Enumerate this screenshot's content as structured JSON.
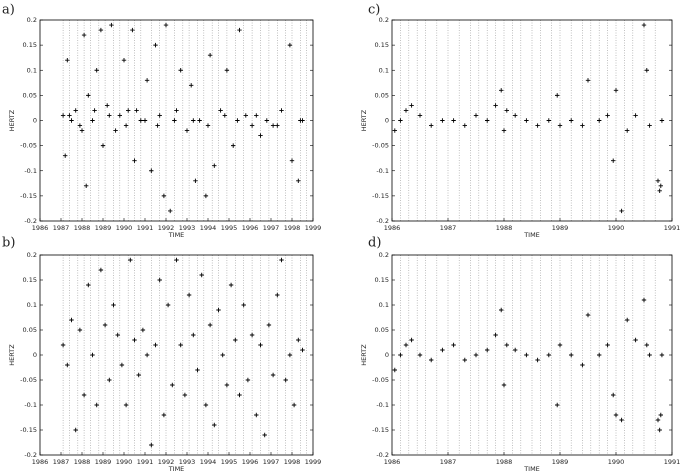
{
  "chart_data": [
    {
      "type": "scatter",
      "label": "a)",
      "xlabel": "TIME",
      "ylabel": "HERTZ",
      "color": "#000000",
      "xlim": [
        1986,
        1999
      ],
      "ylim": [
        -0.2,
        0.2
      ],
      "xticks": [
        1986,
        1987,
        1988,
        1989,
        1990,
        1991,
        1992,
        1993,
        1994,
        1995,
        1996,
        1997,
        1998,
        1999
      ],
      "yticks": [
        -0.2,
        -0.15,
        -0.1,
        -0.05,
        0,
        0.05,
        0.1,
        0.15,
        0.2
      ],
      "vlines": [
        1987.1,
        1987.4,
        1987.8,
        1988.1,
        1988.4,
        1988.8,
        1989.1,
        1989.5,
        1989.8,
        1990.2,
        1990.5,
        1990.8,
        1991.3,
        1991.7,
        1992.0,
        1992.4,
        1992.8,
        1993.1,
        1993.5,
        1993.8,
        1994.2,
        1994.5,
        1994.9,
        1995.3,
        1995.7,
        1996.1,
        1996.5,
        1996.9,
        1997.3,
        1997.7,
        1998.0,
        1998.4,
        1998.7
      ],
      "x": [
        1987.1,
        1987.2,
        1987.3,
        1987.5,
        1987.7,
        1987.9,
        1988.1,
        1988.2,
        1988.3,
        1988.5,
        1988.7,
        1988.9,
        1989.0,
        1989.2,
        1989.4,
        1989.6,
        1989.8,
        1990.0,
        1990.2,
        1990.4,
        1990.5,
        1990.8,
        1991.1,
        1991.3,
        1991.5,
        1991.7,
        1991.9,
        1992.0,
        1992.2,
        1992.4,
        1992.7,
        1993.0,
        1993.2,
        1993.4,
        1993.6,
        1993.9,
        1994.1,
        1994.3,
        1994.6,
        1994.9,
        1995.2,
        1995.5,
        1995.8,
        1996.1,
        1996.5,
        1996.8,
        1997.1,
        1997.5,
        1997.9,
        1998.0,
        1998.3,
        1998.5,
        1987.4,
        1988.0,
        1988.6,
        1989.3,
        1990.1,
        1990.6,
        1991.0,
        1991.6,
        1992.5,
        1993.3,
        1994.0,
        1994.8,
        1995.4,
        1996.3,
        1997.3,
        1998.4
      ],
      "values": [
        0.01,
        -0.07,
        0.12,
        0.0,
        0.02,
        -0.01,
        0.17,
        -0.13,
        0.05,
        0.0,
        0.1,
        0.18,
        -0.05,
        0.03,
        0.19,
        -0.02,
        0.01,
        0.12,
        0.02,
        0.18,
        -0.08,
        0.0,
        0.08,
        -0.1,
        0.15,
        0.01,
        -0.15,
        0.19,
        -0.18,
        0.0,
        0.1,
        -0.02,
        0.07,
        -0.12,
        0.0,
        -0.15,
        0.13,
        -0.09,
        0.02,
        0.1,
        -0.05,
        0.18,
        0.01,
        -0.01,
        -0.03,
        0.0,
        -0.01,
        0.02,
        0.15,
        -0.08,
        -0.12,
        0.0,
        0.01,
        -0.02,
        0.02,
        0.01,
        -0.01,
        0.02,
        0.0,
        -0.01,
        0.02,
        0.0,
        -0.01,
        0.01,
        0.0,
        0.01,
        -0.01,
        0.0
      ]
    },
    {
      "type": "scatter",
      "label": "b)",
      "xlabel": "TIME",
      "ylabel": "HERTZ",
      "color": "#000000",
      "xlim": [
        1986,
        1999
      ],
      "ylim": [
        -0.2,
        0.2
      ],
      "xticks": [
        1986,
        1987,
        1988,
        1989,
        1990,
        1991,
        1992,
        1993,
        1994,
        1995,
        1996,
        1997,
        1998,
        1999
      ],
      "yticks": [
        -0.2,
        -0.15,
        -0.1,
        -0.05,
        0,
        0.05,
        0.1,
        0.15,
        0.2
      ],
      "vlines": [
        1987.1,
        1987.4,
        1987.8,
        1988.1,
        1988.4,
        1988.8,
        1989.1,
        1989.5,
        1989.8,
        1990.2,
        1990.5,
        1990.8,
        1991.3,
        1991.7,
        1992.0,
        1992.4,
        1992.8,
        1993.1,
        1993.5,
        1993.8,
        1994.2,
        1994.5,
        1994.9,
        1995.3,
        1995.7,
        1996.1,
        1996.5,
        1996.9,
        1997.3,
        1997.7,
        1998.0,
        1998.4,
        1998.7
      ],
      "x": [
        1987.1,
        1987.3,
        1987.5,
        1987.7,
        1987.9,
        1988.1,
        1988.3,
        1988.5,
        1988.7,
        1988.9,
        1989.1,
        1989.3,
        1989.5,
        1989.7,
        1989.9,
        1990.1,
        1990.3,
        1990.5,
        1990.7,
        1990.9,
        1991.1,
        1991.3,
        1991.5,
        1991.7,
        1991.9,
        1992.1,
        1992.3,
        1992.5,
        1992.7,
        1992.9,
        1993.1,
        1993.3,
        1993.5,
        1993.7,
        1993.9,
        1994.1,
        1994.3,
        1994.5,
        1994.7,
        1994.9,
        1995.1,
        1995.3,
        1995.5,
        1995.7,
        1995.9,
        1996.1,
        1996.3,
        1996.5,
        1996.7,
        1996.9,
        1997.1,
        1997.3,
        1997.5,
        1997.7,
        1997.9,
        1998.1,
        1998.3,
        1998.5
      ],
      "values": [
        0.02,
        -0.02,
        0.07,
        -0.15,
        0.05,
        -0.08,
        0.14,
        0.0,
        -0.1,
        0.17,
        0.06,
        -0.05,
        0.1,
        0.04,
        -0.02,
        -0.1,
        0.19,
        0.03,
        -0.04,
        0.05,
        0.0,
        -0.18,
        0.02,
        0.15,
        -0.12,
        0.1,
        -0.06,
        0.19,
        0.02,
        -0.08,
        0.12,
        0.04,
        -0.03,
        0.16,
        -0.1,
        0.06,
        -0.14,
        0.09,
        0.0,
        -0.06,
        0.14,
        0.03,
        -0.08,
        0.1,
        -0.05,
        0.04,
        -0.12,
        0.02,
        -0.16,
        0.06,
        -0.04,
        0.12,
        0.19,
        -0.05,
        0.0,
        -0.1,
        0.03,
        0.01
      ]
    },
    {
      "type": "scatter",
      "label": "c)",
      "xlabel": "TIME",
      "ylabel": "HERTZ",
      "color": "#000000",
      "xlim": [
        1986,
        1991
      ],
      "ylim": [
        -0.2,
        0.2
      ],
      "xticks": [
        1986,
        1987,
        1988,
        1989,
        1990,
        1991
      ],
      "yticks": [
        -0.2,
        -0.15,
        -0.1,
        -0.05,
        0,
        0.05,
        0.1,
        0.15,
        0.2
      ],
      "vlines": [
        1986.15,
        1986.3,
        1986.45,
        1986.6,
        1986.8,
        1987.0,
        1987.2,
        1987.4,
        1987.55,
        1987.7,
        1987.85,
        1988.0,
        1988.15,
        1988.3,
        1988.5,
        1988.65,
        1988.85,
        1989.0,
        1989.2,
        1989.4,
        1989.55,
        1989.7,
        1989.85,
        1990.0,
        1990.15,
        1990.3,
        1990.5,
        1990.7
      ],
      "x": [
        1986.05,
        1986.15,
        1986.25,
        1986.35,
        1986.5,
        1986.7,
        1986.9,
        1987.1,
        1987.3,
        1987.5,
        1987.7,
        1987.85,
        1987.95,
        1988.0,
        1988.05,
        1988.2,
        1988.4,
        1988.6,
        1988.8,
        1988.95,
        1989.0,
        1989.2,
        1989.4,
        1989.5,
        1989.7,
        1989.85,
        1989.95,
        1990.0,
        1990.1,
        1990.2,
        1990.35,
        1990.5,
        1990.55,
        1990.6,
        1990.75,
        1990.78,
        1990.8,
        1990.82
      ],
      "values": [
        -0.02,
        0.0,
        0.02,
        0.03,
        0.01,
        -0.01,
        0.0,
        0.0,
        -0.01,
        0.01,
        0.0,
        0.03,
        0.06,
        -0.02,
        0.02,
        0.01,
        0.0,
        -0.01,
        0.0,
        0.05,
        -0.01,
        0.0,
        -0.01,
        0.08,
        0.0,
        0.01,
        -0.08,
        0.06,
        -0.18,
        -0.02,
        0.01,
        0.19,
        0.1,
        -0.01,
        -0.12,
        -0.14,
        -0.13,
        0.0
      ]
    },
    {
      "type": "scatter",
      "label": "d)",
      "xlabel": "TIME",
      "ylabel": "HERTZ",
      "color": "#000000",
      "xlim": [
        1986,
        1991
      ],
      "ylim": [
        -0.2,
        0.2
      ],
      "xticks": [
        1986,
        1987,
        1988,
        1989,
        1990,
        1991
      ],
      "yticks": [
        -0.2,
        -0.15,
        -0.1,
        -0.05,
        0,
        0.05,
        0.1,
        0.15,
        0.2
      ],
      "vlines": [
        1986.15,
        1986.3,
        1986.45,
        1986.6,
        1986.8,
        1987.0,
        1987.2,
        1987.4,
        1987.55,
        1987.7,
        1987.85,
        1988.0,
        1988.15,
        1988.3,
        1988.5,
        1988.65,
        1988.85,
        1989.0,
        1989.2,
        1989.4,
        1989.55,
        1989.7,
        1989.85,
        1990.0,
        1990.15,
        1990.3,
        1990.5,
        1990.7
      ],
      "x": [
        1986.05,
        1986.15,
        1986.25,
        1986.35,
        1986.5,
        1986.7,
        1986.9,
        1987.1,
        1987.3,
        1987.5,
        1987.7,
        1987.85,
        1987.95,
        1988.0,
        1988.05,
        1988.2,
        1988.4,
        1988.6,
        1988.8,
        1988.95,
        1989.0,
        1989.2,
        1989.4,
        1989.5,
        1989.7,
        1989.85,
        1989.95,
        1990.0,
        1990.1,
        1990.2,
        1990.35,
        1990.5,
        1990.55,
        1990.6,
        1990.75,
        1990.78,
        1990.8,
        1990.82
      ],
      "values": [
        -0.03,
        0.0,
        0.02,
        0.03,
        0.0,
        -0.01,
        0.01,
        0.02,
        -0.01,
        0.0,
        0.01,
        0.04,
        0.09,
        -0.06,
        0.02,
        0.01,
        0.0,
        -0.01,
        0.0,
        -0.1,
        0.02,
        0.0,
        -0.02,
        0.08,
        0.0,
        0.02,
        -0.08,
        -0.12,
        -0.13,
        0.07,
        0.03,
        0.11,
        0.02,
        0.0,
        -0.13,
        -0.15,
        -0.12,
        0.0
      ]
    }
  ]
}
